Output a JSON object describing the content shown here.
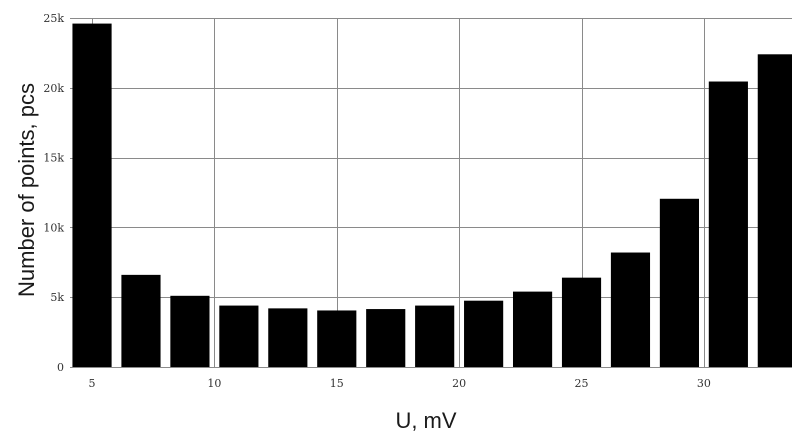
{
  "chart_data": {
    "type": "bar",
    "title": "",
    "xlabel": "U, mV",
    "ylabel": "Number of points, pcs",
    "x": [
      5,
      7,
      9,
      11,
      13,
      15,
      17,
      19,
      21,
      23,
      25,
      27,
      29,
      31,
      33
    ],
    "values": [
      24600,
      6600,
      5100,
      4400,
      4200,
      4050,
      4150,
      4400,
      4750,
      5400,
      6400,
      8200,
      12050,
      20450,
      22400
    ],
    "xlim": [
      4.1,
      33.6
    ],
    "ylim": [
      0,
      25000
    ],
    "x_ticks": [
      5,
      10,
      15,
      20,
      25,
      30
    ],
    "x_tick_labels": [
      "5",
      "10",
      "15",
      "20",
      "25",
      "30"
    ],
    "y_ticks": [
      0,
      5000,
      10000,
      15000,
      20000,
      25000
    ],
    "y_tick_labels": [
      "0",
      "5k",
      "10k",
      "15k",
      "20k",
      "25k"
    ],
    "bar_width": 1.6,
    "bar_color": "#000000",
    "grid": true,
    "legend": "none"
  }
}
